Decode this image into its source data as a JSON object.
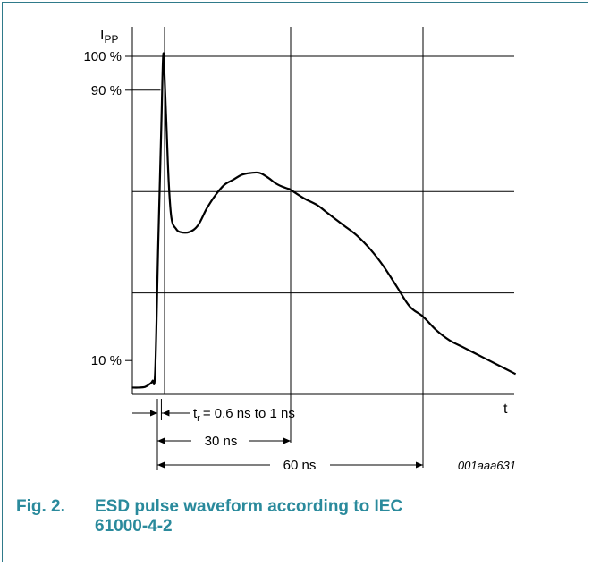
{
  "chart_data": {
    "type": "line",
    "title": "",
    "ylabel_main": "I",
    "ylabel_sub": "PP",
    "xlabel": "t",
    "yticks": [
      {
        "label": "100 %",
        "value": 100
      },
      {
        "label": "90 %",
        "value": 90
      },
      {
        "label": "10 %",
        "value": 10
      }
    ],
    "grid_h_values": [
      60,
      30
    ],
    "grid_v_values_ns": [
      30,
      60
    ],
    "series": [
      {
        "x": [
          -6,
          -4.5,
          -3,
          -2,
          -1.3,
          -0.7,
          0,
          0.7,
          1.1,
          1.4,
          1.9,
          2.4,
          3,
          4,
          5,
          7,
          9,
          11,
          13,
          15,
          17,
          19,
          21,
          23,
          25,
          26.5,
          28,
          29.5,
          30,
          33,
          36,
          38,
          40,
          42,
          45,
          48,
          51,
          54,
          57,
          60,
          63,
          66,
          69,
          72,
          75,
          78,
          81
        ],
        "y": [
          2,
          2,
          2.2,
          3,
          4,
          7,
          45,
          80,
          100,
          95,
          78,
          62,
          52,
          49,
          48,
          48,
          50,
          55,
          59,
          62,
          63.5,
          65,
          65.5,
          65.5,
          64,
          62.5,
          61.5,
          60.8,
          60.5,
          58,
          56,
          54,
          52,
          50,
          47,
          43,
          38,
          32,
          26,
          23,
          19,
          16,
          14,
          12,
          10,
          8,
          6
        ]
      }
    ],
    "annotations": {
      "tr_prefix": "t",
      "tr_sub": "r",
      "tr_text": "= 0.6 ns to 1 ns",
      "span30": "30 ns",
      "span60": "60 ns",
      "figure_id": "001aaa631"
    }
  },
  "caption": {
    "number": "Fig. 2.",
    "text": "ESD pulse waveform according to IEC 61000-4-2"
  }
}
